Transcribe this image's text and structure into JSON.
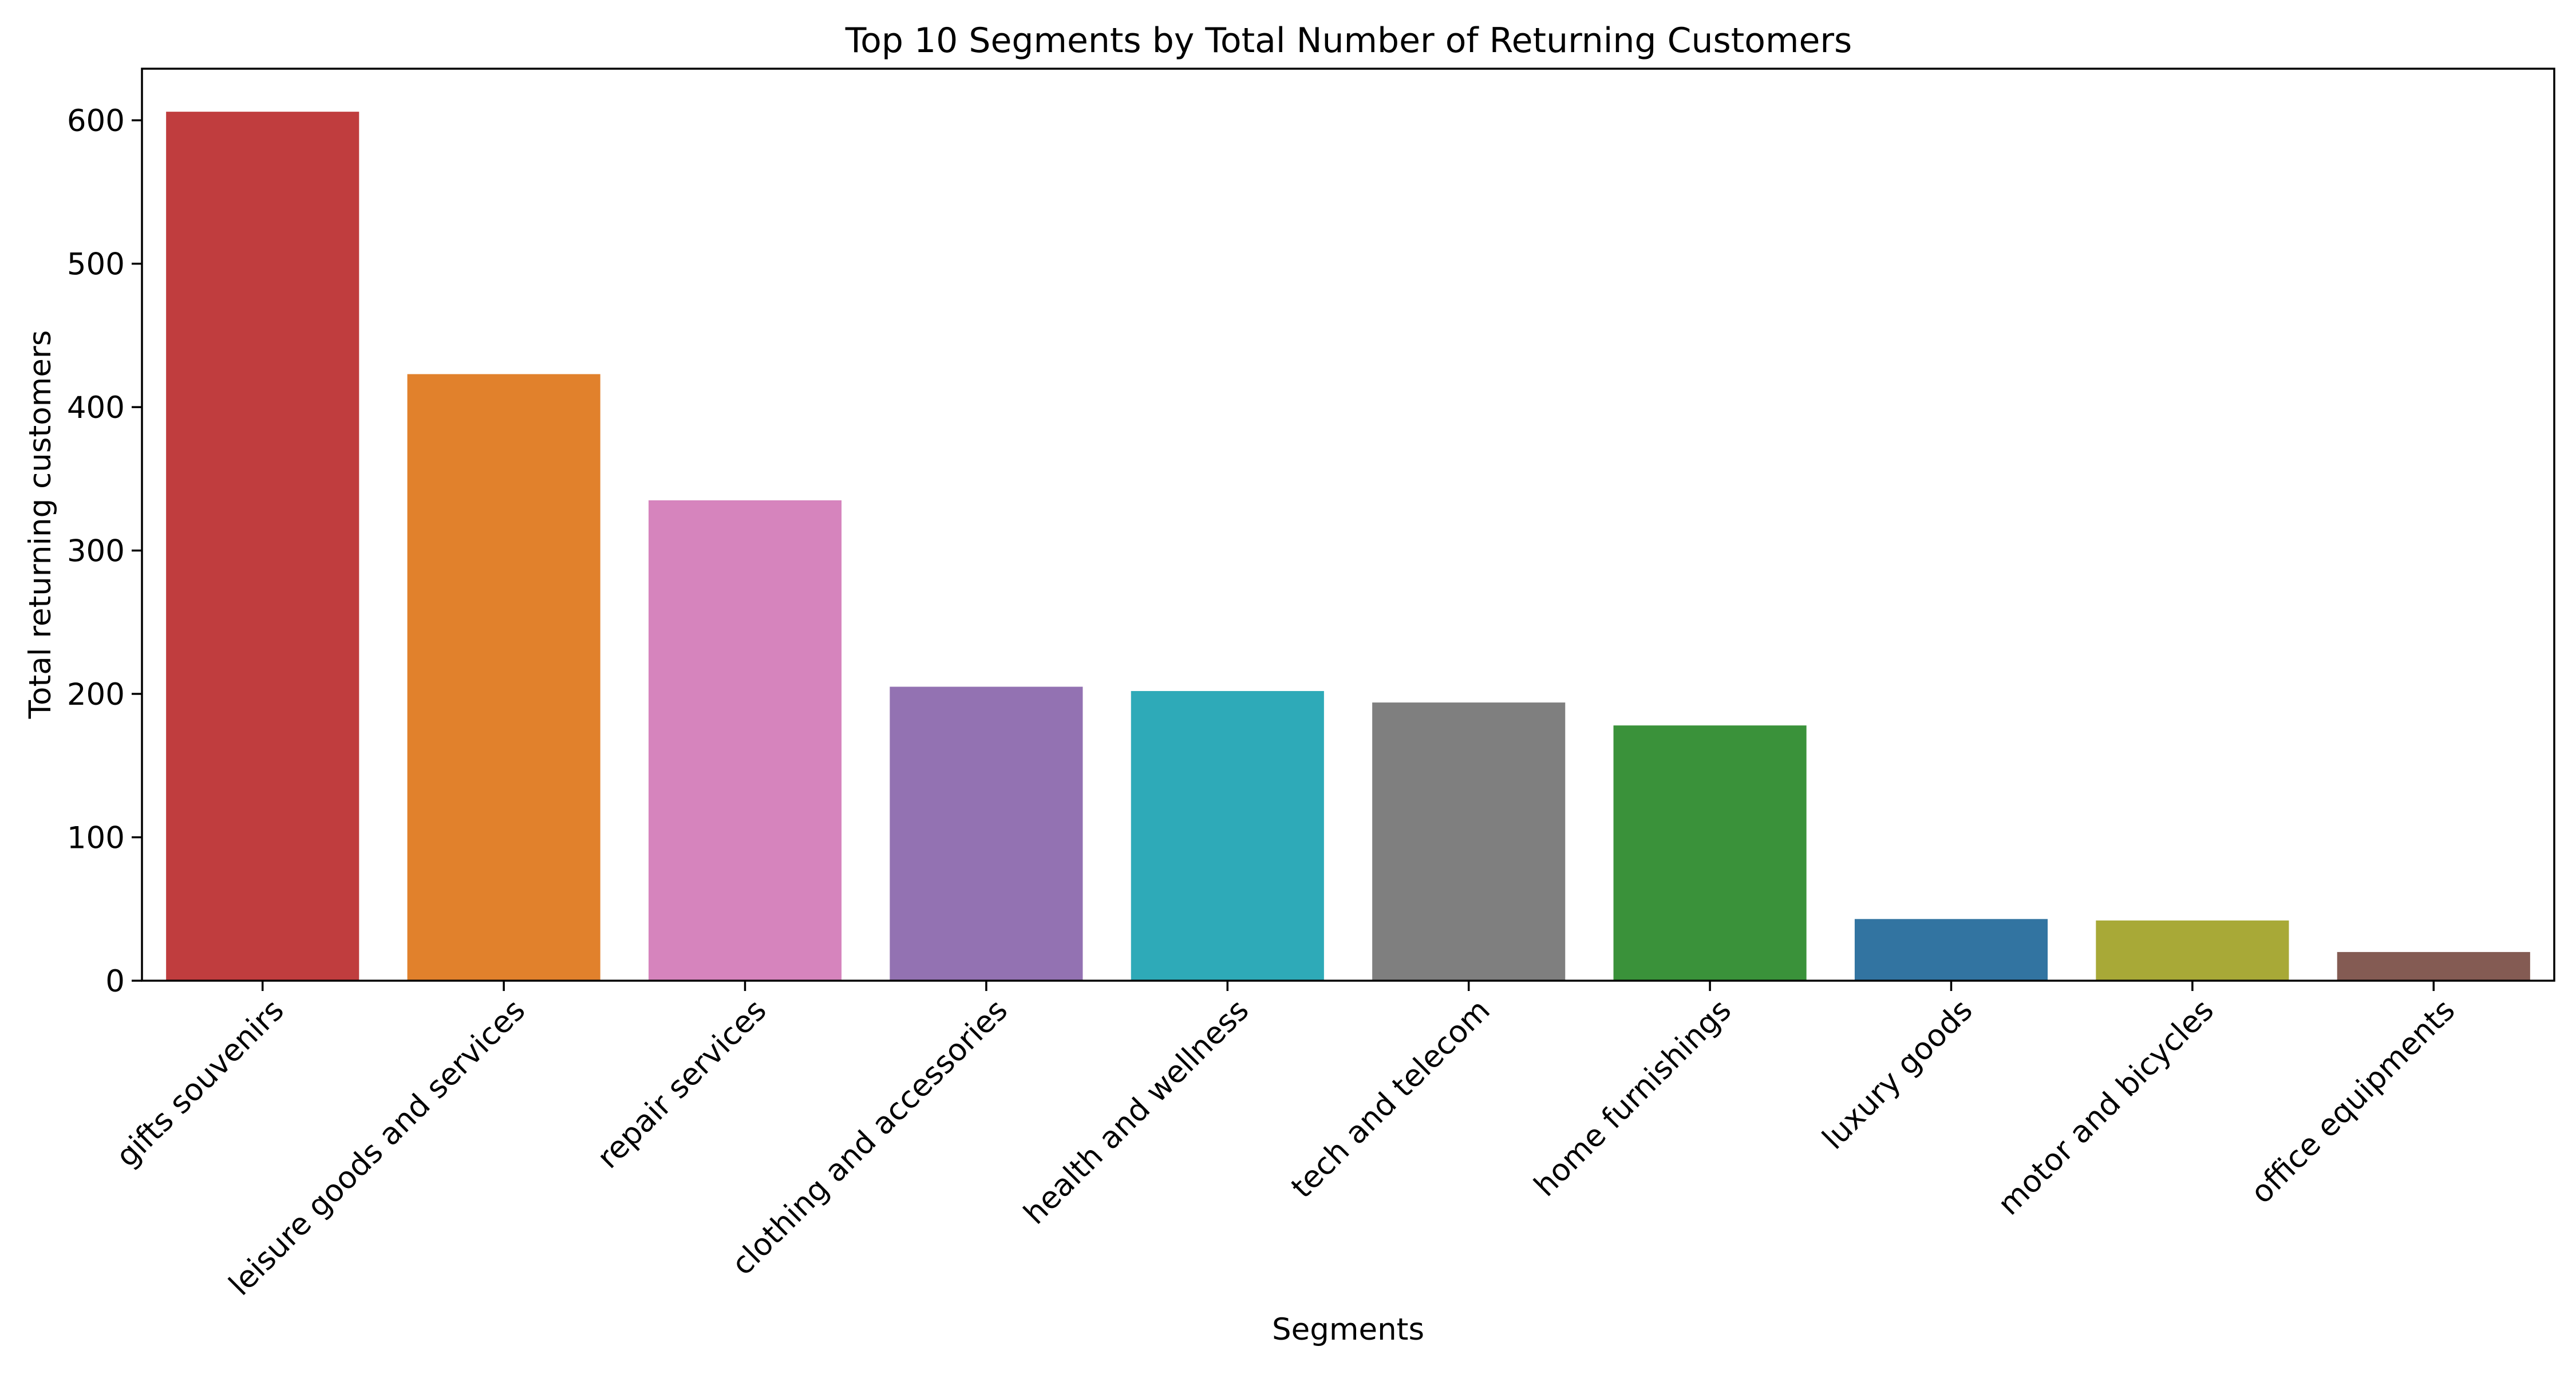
{
  "chart_data": {
    "type": "bar",
    "title": "Top 10 Segments by Total Number of Returning Customers",
    "xlabel": "Segments",
    "ylabel": "Total returning customers",
    "categories": [
      "gifts souvenirs",
      "leisure goods and services",
      "repair services",
      "clothing and accessories",
      "health and wellness",
      "tech and telecom",
      "home furnishings",
      "luxury goods",
      "motor and bicycles",
      "office equipments"
    ],
    "values": [
      606,
      423,
      335,
      205,
      202,
      194,
      178,
      43,
      42,
      20
    ],
    "colors": [
      "#c03d3e",
      "#e1812c",
      "#d684bd",
      "#9372b2",
      "#2eaab8",
      "#7f7f7f",
      "#3a923a",
      "#3274a1",
      "#a8a937",
      "#845b53"
    ],
    "ylim": [
      0,
      636
    ],
    "yticks": [
      0,
      100,
      200,
      300,
      400,
      500,
      600
    ],
    "grid": false,
    "legend": "none"
  }
}
